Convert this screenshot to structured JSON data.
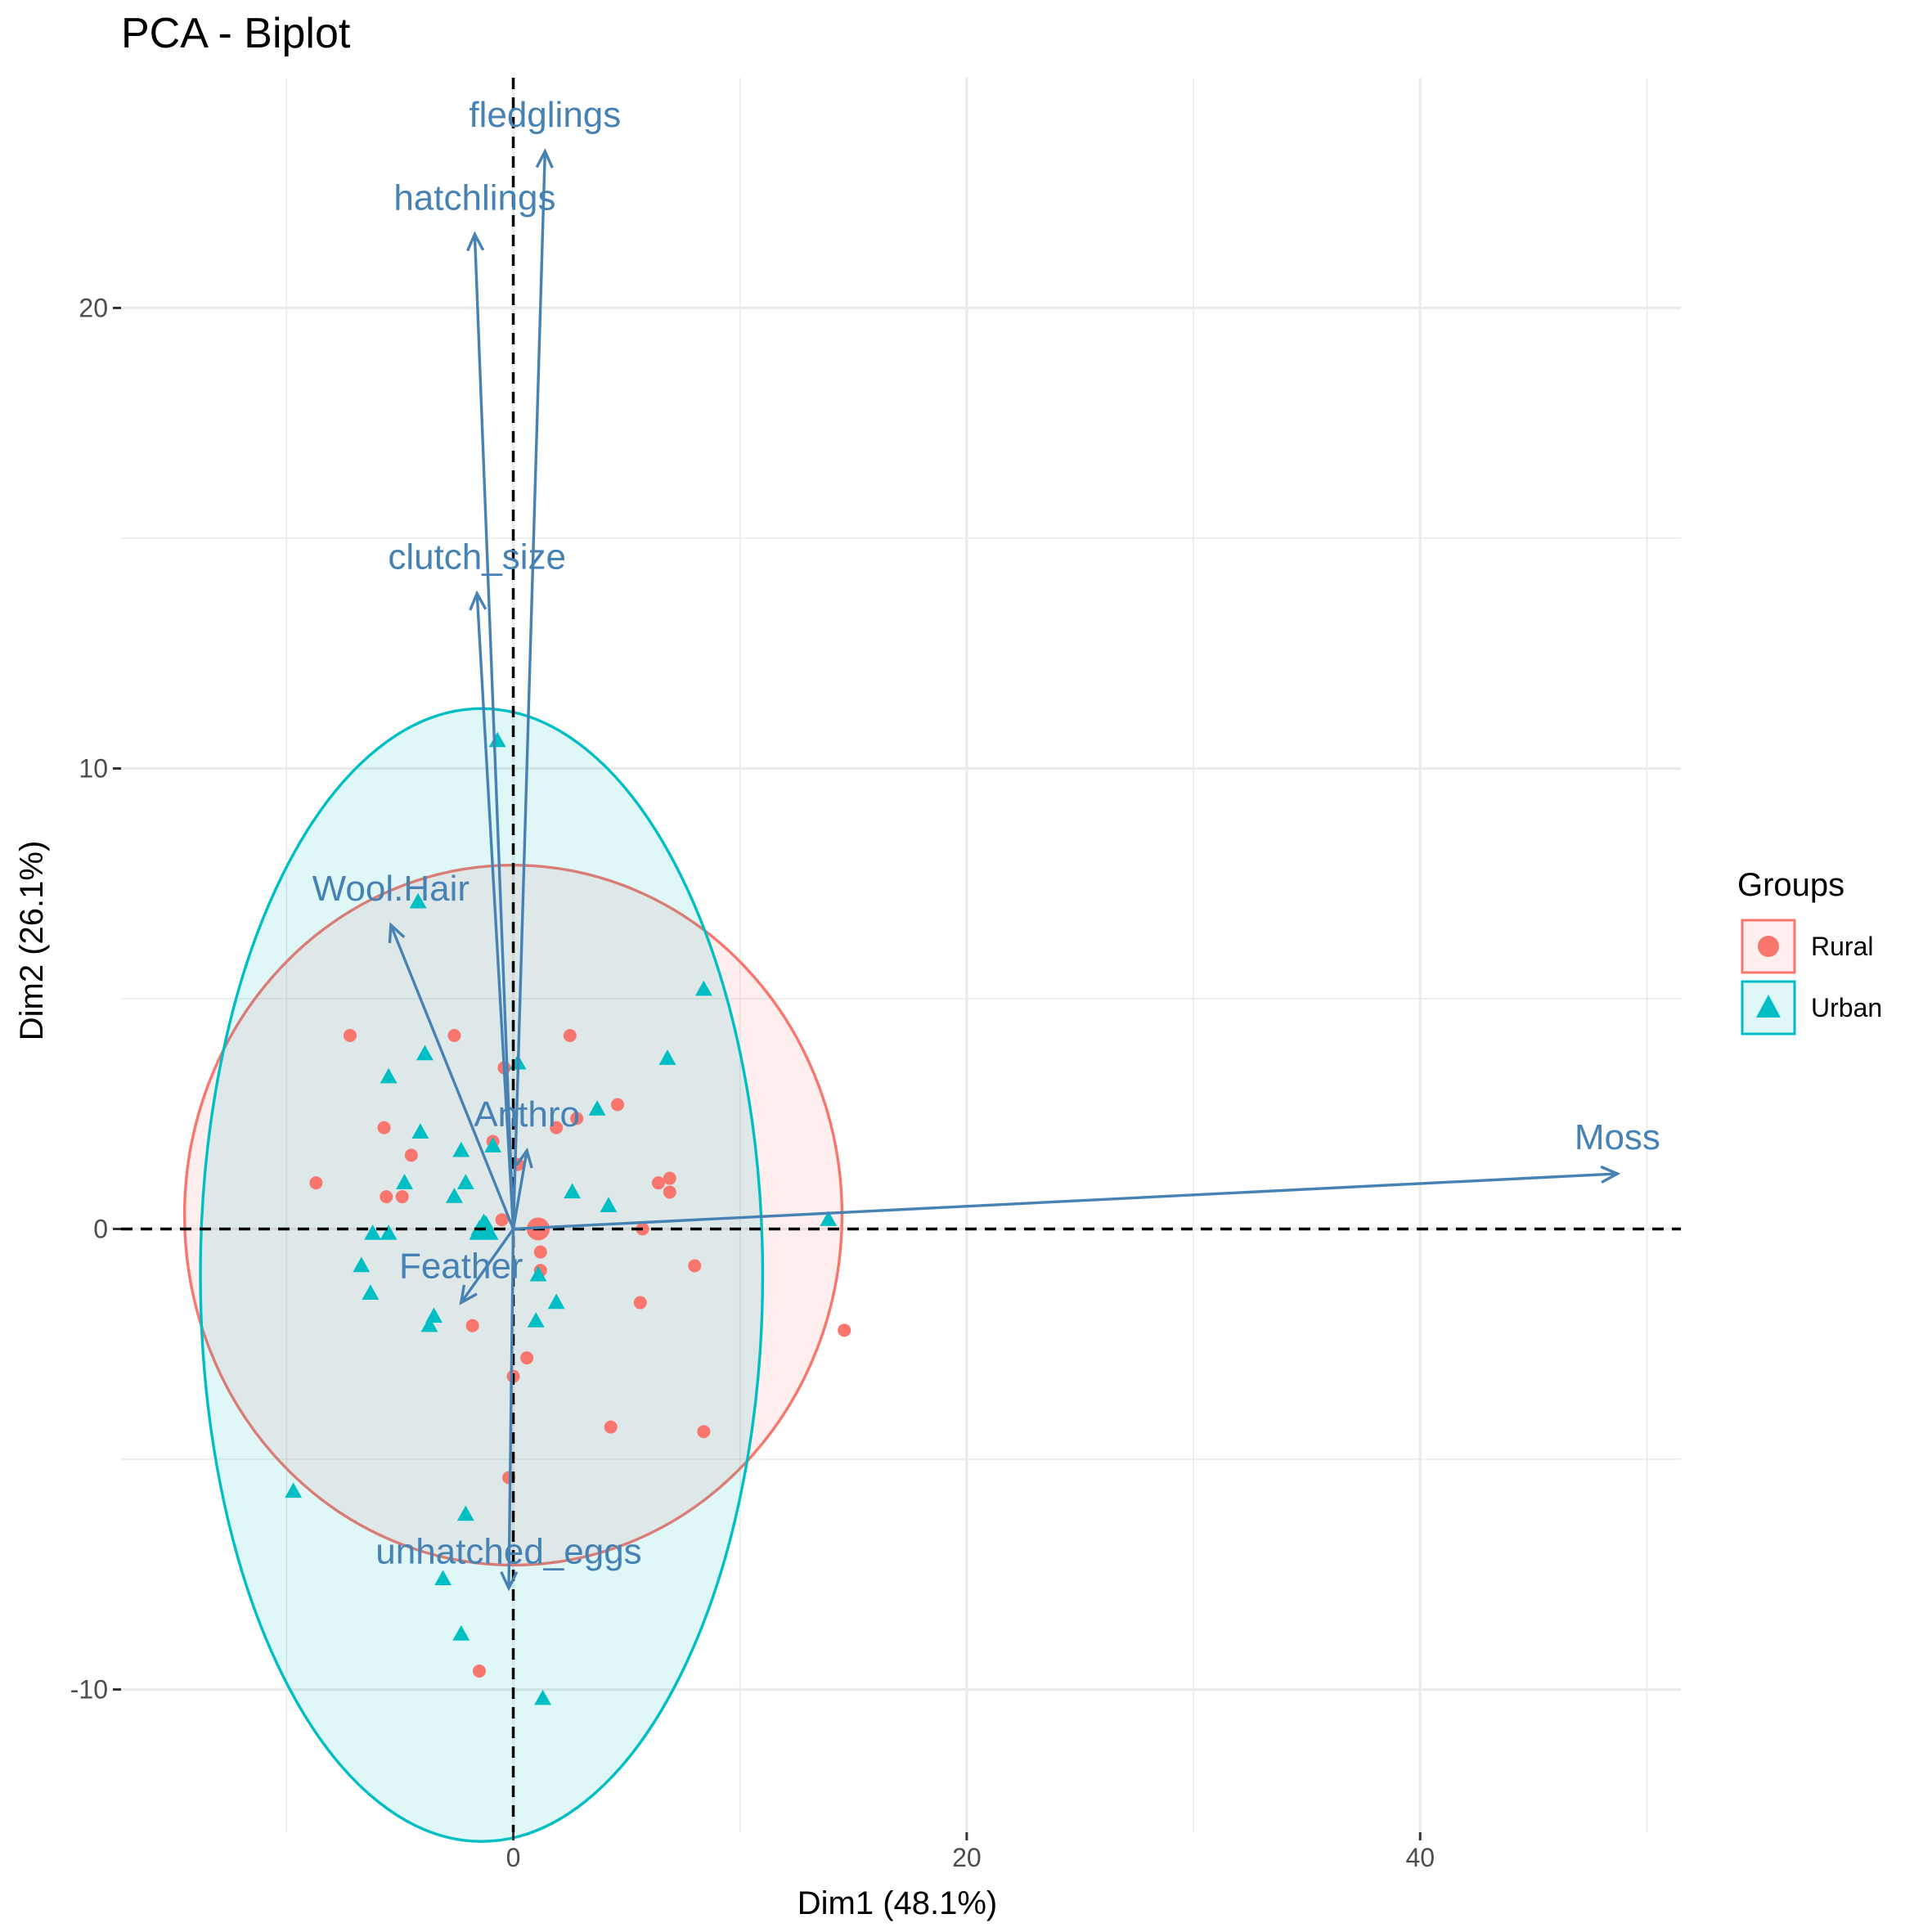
{
  "chart_data": {
    "type": "scatter",
    "title": "PCA - Biplot",
    "xlabel": "Dim1 (48.1%)",
    "ylabel": "Dim2 (26.1%)",
    "xlim": [
      -17.3,
      51.5
    ],
    "ylim": [
      -13.1,
      25.0
    ],
    "x_ticks": [
      0,
      20,
      40
    ],
    "x_tick_labels": [
      "0",
      "20",
      "40"
    ],
    "y_ticks": [
      -10,
      0,
      10,
      20
    ],
    "y_tick_labels": [
      "-10",
      "0",
      "10",
      "20"
    ],
    "x_minor_ticks": [
      -10,
      10,
      30,
      50
    ],
    "y_minor_ticks": [
      -5,
      5,
      15
    ],
    "grid": true,
    "legend": {
      "title": "Groups",
      "position": "right",
      "entries": [
        {
          "name": "Rural",
          "shape": "circle",
          "color": "#F8766D"
        },
        {
          "name": "Urban",
          "shape": "triangle",
          "color": "#00BFC4"
        }
      ]
    },
    "colors": {
      "rural": "#F8766D",
      "urban": "#00BFC4",
      "variable": "#4682B4"
    },
    "series": [
      {
        "name": "Rural",
        "shape": "circle",
        "color": "#F8766D",
        "points": [
          [
            -7.2,
            4.2
          ],
          [
            -2.6,
            4.2
          ],
          [
            2.5,
            4.2
          ],
          [
            -0.4,
            3.5
          ],
          [
            -5.7,
            2.2
          ],
          [
            -4.5,
            1.6
          ],
          [
            -0.9,
            1.9
          ],
          [
            1.9,
            2.2
          ],
          [
            2.8,
            2.4
          ],
          [
            4.6,
            2.7
          ],
          [
            0.2,
            1.4
          ],
          [
            -8.7,
            1.0
          ],
          [
            -5.6,
            0.7
          ],
          [
            -4.9,
            0.7
          ],
          [
            6.4,
            1.0
          ],
          [
            6.9,
            0.8
          ],
          [
            6.9,
            1.1
          ],
          [
            -0.5,
            0.2
          ],
          [
            5.7,
            0.0
          ],
          [
            8.0,
            -0.8
          ],
          [
            1.2,
            -0.5
          ],
          [
            1.2,
            -0.9
          ],
          [
            5.6,
            -1.6
          ],
          [
            -1.8,
            -2.1
          ],
          [
            0.6,
            -2.8
          ],
          [
            0.0,
            -3.2
          ],
          [
            4.3,
            -4.3
          ],
          [
            8.4,
            -4.4
          ],
          [
            14.6,
            -2.2
          ],
          [
            -0.2,
            -5.4
          ],
          [
            -1.5,
            -9.6
          ]
        ],
        "centroid": [
          1.1,
          0.0
        ]
      },
      {
        "name": "Urban",
        "shape": "triangle",
        "color": "#00BFC4",
        "points": [
          [
            -0.7,
            10.6
          ],
          [
            -4.2,
            7.1
          ],
          [
            8.4,
            5.2
          ],
          [
            -5.5,
            3.3
          ],
          [
            -3.9,
            3.8
          ],
          [
            0.2,
            3.6
          ],
          [
            6.8,
            3.7
          ],
          [
            3.7,
            2.6
          ],
          [
            -4.1,
            2.1
          ],
          [
            -2.3,
            1.7
          ],
          [
            -0.9,
            1.8
          ],
          [
            -2.1,
            1.0
          ],
          [
            -4.8,
            1.0
          ],
          [
            -2.6,
            0.7
          ],
          [
            2.6,
            0.8
          ],
          [
            4.2,
            0.5
          ],
          [
            13.9,
            0.2
          ],
          [
            -1.2,
            0.1
          ],
          [
            -1.5,
            0.0
          ],
          [
            -6.2,
            -0.1
          ],
          [
            -5.5,
            -0.1
          ],
          [
            -6.7,
            -0.8
          ],
          [
            1.1,
            -1.0
          ],
          [
            -6.3,
            -1.4
          ],
          [
            1.9,
            -1.6
          ],
          [
            -3.5,
            -1.9
          ],
          [
            -3.7,
            -2.1
          ],
          [
            1.0,
            -2.0
          ],
          [
            -9.7,
            -5.7
          ],
          [
            -2.1,
            -6.2
          ],
          [
            -3.1,
            -7.6
          ],
          [
            -2.3,
            -8.8
          ],
          [
            1.3,
            -10.2
          ]
        ],
        "centroid": [
          -1.3,
          0.0
        ]
      }
    ],
    "ellipses": [
      {
        "group": "Rural",
        "center": [
          0.0,
          0.3
        ],
        "rx": 14.5,
        "ry": 7.6,
        "fill_opacity": 0.12
      },
      {
        "group": "Urban",
        "center": [
          -1.4,
          -1.0
        ],
        "rx": 12.4,
        "ry": 12.3,
        "fill_opacity": 0.12
      }
    ],
    "variables": [
      {
        "name": "fledglings",
        "x": 1.4,
        "y": 23.4
      },
      {
        "name": "hatchlings",
        "x": -1.7,
        "y": 21.6
      },
      {
        "name": "clutch_size",
        "x": -1.6,
        "y": 13.8
      },
      {
        "name": "Wool.Hair",
        "x": -5.4,
        "y": 6.6
      },
      {
        "name": "Anthro",
        "x": 0.6,
        "y": 1.7
      },
      {
        "name": "Moss",
        "x": 48.7,
        "y": 1.2
      },
      {
        "name": "Feather",
        "x": -2.3,
        "y": -1.6
      },
      {
        "name": "unhatched_eggs",
        "x": -0.2,
        "y": -7.8
      }
    ]
  }
}
